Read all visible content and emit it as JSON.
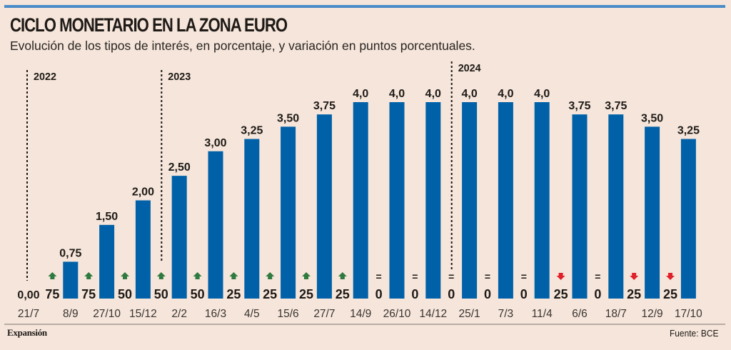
{
  "header": {
    "title": "CICLO MONETARIO EN LA ZONA EURO",
    "subtitle": "Evolución de los tipos de interés, en porcentaje, y variación en puntos porcentuales."
  },
  "footer": {
    "brand": "Expansión",
    "source": "Fuente: BCE"
  },
  "colors": {
    "bar": "#0061a8",
    "rule": "#4a8cc7",
    "up": "#2f7a3f",
    "down": "#e0202a",
    "text": "#1e1a17",
    "background": "#f5e5da"
  },
  "chart_data": {
    "type": "bar",
    "title": "CICLO MONETARIO EN LA ZONA EURO",
    "subtitle": "Evolución de los tipos de interés, en porcentaje, y variación en puntos porcentuales.",
    "xlabel": "",
    "ylabel": "",
    "ylim": [
      0,
      4.0
    ],
    "grid": false,
    "categories": [
      "21/7",
      "8/9",
      "27/10",
      "15/12",
      "2/2",
      "16/3",
      "4/5",
      "15/6",
      "27/7",
      "14/9",
      "26/10",
      "14/12",
      "25/1",
      "7/3",
      "11/4",
      "6/6",
      "18/7",
      "12/9",
      "17/10"
    ],
    "values": [
      0.0,
      0.75,
      1.5,
      2.0,
      2.5,
      3.0,
      3.25,
      3.5,
      3.75,
      4.0,
      4.0,
      4.0,
      4.0,
      4.0,
      4.0,
      3.75,
      3.75,
      3.5,
      3.25
    ],
    "value_labels": [
      "0,00",
      "0,75",
      "1,50",
      "2,00",
      "2,50",
      "3,00",
      "3,25",
      "3,50",
      "3,75",
      "4,0",
      "4,0",
      "4,0",
      "4,0",
      "4,0",
      "4,0",
      "3,75",
      "3,75",
      "3,50",
      "3,25"
    ],
    "changes": [
      {
        "label": "75",
        "direction": "up"
      },
      {
        "label": "75",
        "direction": "up"
      },
      {
        "label": "50",
        "direction": "up"
      },
      {
        "label": "50",
        "direction": "up"
      },
      {
        "label": "50",
        "direction": "up"
      },
      {
        "label": "25",
        "direction": "up"
      },
      {
        "label": "25",
        "direction": "up"
      },
      {
        "label": "25",
        "direction": "up"
      },
      {
        "label": "25",
        "direction": "up"
      },
      {
        "label": "0",
        "direction": "equal"
      },
      {
        "label": "0",
        "direction": "equal"
      },
      {
        "label": "0",
        "direction": "equal"
      },
      {
        "label": "0",
        "direction": "equal"
      },
      {
        "label": "0",
        "direction": "equal"
      },
      {
        "label": "25",
        "direction": "down"
      },
      {
        "label": "0",
        "direction": "equal"
      },
      {
        "label": "25",
        "direction": "down"
      },
      {
        "label": "25",
        "direction": "down"
      }
    ],
    "year_markers": [
      {
        "label": "2022",
        "before_index": 0
      },
      {
        "label": "2023",
        "before_index": 4
      },
      {
        "label": "2024",
        "before_index": 12
      }
    ],
    "symbols": {
      "equal": "="
    }
  }
}
